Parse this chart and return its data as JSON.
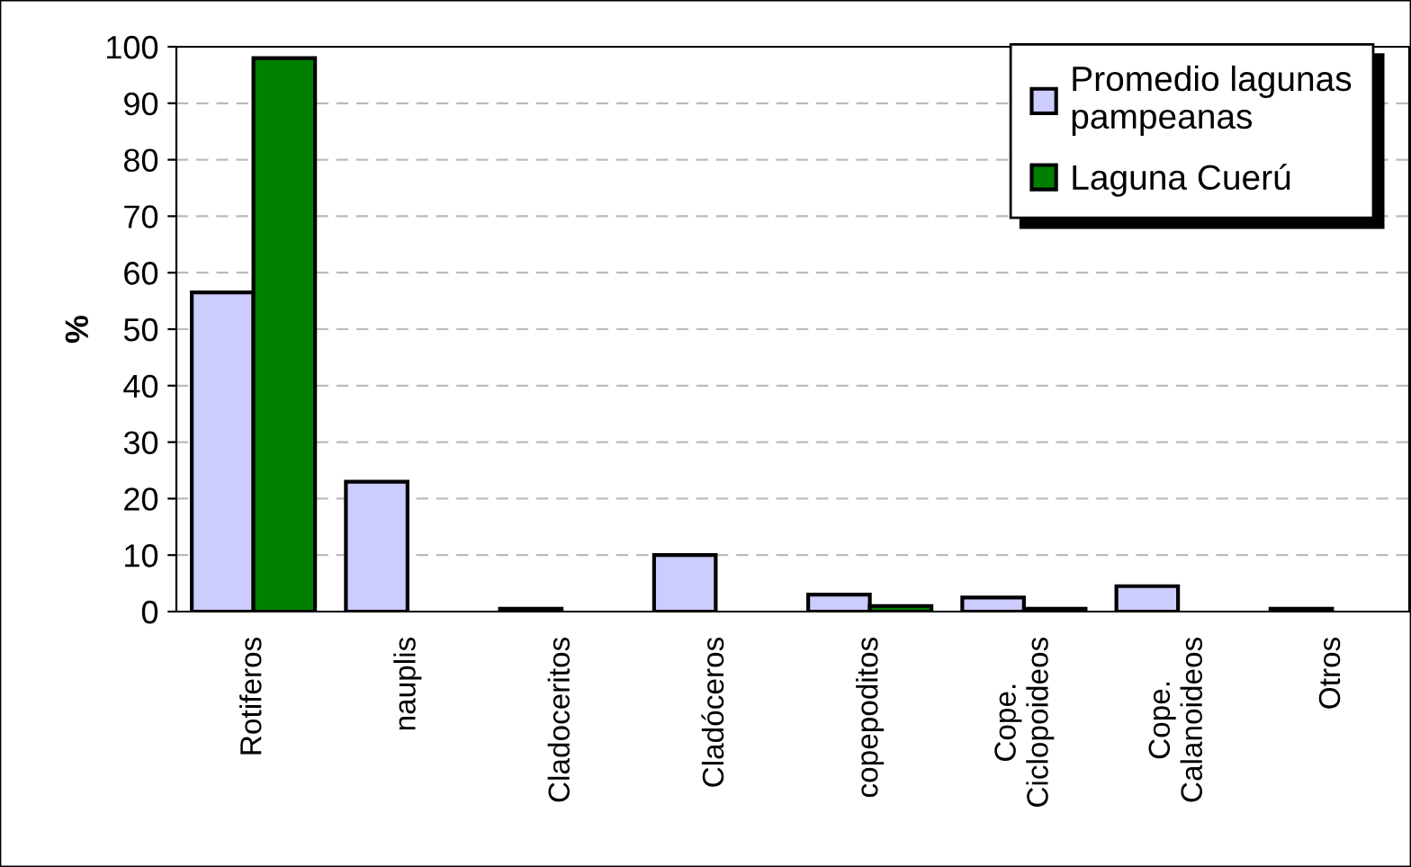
{
  "chart_data": {
    "type": "bar",
    "ylabel": "%",
    "categories": [
      "Rotiferos",
      "nauplis",
      "Cladoceritos",
      "Cladóceros",
      "copepoditos",
      "Cope.\nCiclopoideos",
      "Cope.\nCalanoideos",
      "Otros"
    ],
    "series": [
      {
        "name": "Promedio lagunas\npampeanas",
        "color": "#ccccff",
        "values": [
          56.5,
          23,
          0.5,
          10,
          3,
          2.5,
          4.5,
          0.5
        ]
      },
      {
        "name": "Laguna Cuerú",
        "color": "#008000",
        "values": [
          98,
          null,
          null,
          null,
          1,
          0.5,
          null,
          null
        ]
      }
    ],
    "ylim": [
      0,
      100
    ],
    "yticks": [
      0,
      10,
      20,
      30,
      40,
      50,
      60,
      70,
      80,
      90,
      100
    ],
    "grid": "y",
    "legend": "top right"
  }
}
